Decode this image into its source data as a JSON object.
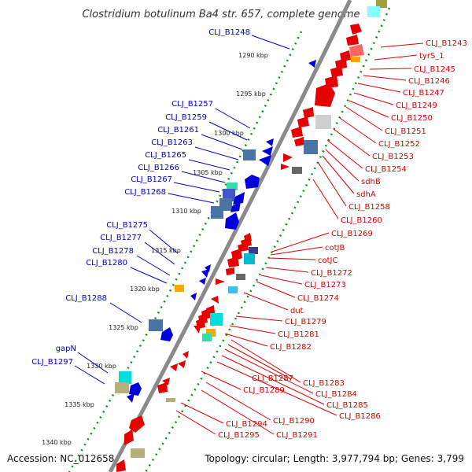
{
  "title": "Clostridium botulinum Ba4 str. 657, complete genome",
  "footer": {
    "accession": "Accession: NC_012658",
    "summary": "Topology: circular; Length: 3,977,794 bp; Genes: 3,799"
  },
  "colors": {
    "backbone": "#8a8a8a",
    "forward_strand": "#0000dd",
    "reverse_strand": "#e60000",
    "label_forward": "#0000cc",
    "label_reverse": "#dd0000",
    "tick": "#009900"
  },
  "kbp_ticks": [
    "1290 kbp",
    "1295 kbp",
    "1300 kbp",
    "1305 kbp",
    "1310 kbp",
    "1315 kbp",
    "1320 kbp",
    "1325 kbp",
    "1330 kbp",
    "1335 kbp",
    "1340 kbp"
  ],
  "forward_labels": [
    "CLJ_B1248",
    "CLJ_B1257",
    "CLJ_B1259",
    "CLJ_B1261",
    "CLJ_B1263",
    "CLJ_B1265",
    "CLJ_B1266",
    "CLJ_B1267",
    "CLJ_B1268",
    "CLJ_B1275",
    "CLJ_B1277",
    "CLJ_B1278",
    "CLJ_B1280",
    "CLJ_B1288",
    "gapN",
    "CLJ_B1297"
  ],
  "reverse_labels": [
    "CLJ_B1243",
    "tyrS_1",
    "CLJ_B1245",
    "CLJ_B1246",
    "CLJ_B1247",
    "CLJ_B1249",
    "CLJ_B1250",
    "CLJ_B1251",
    "CLJ_B1252",
    "CLJ_B1253",
    "CLJ_B1254",
    "sdhB",
    "sdhA",
    "CLJ_B1258",
    "CLJ_B1260",
    "CLJ_B1269",
    "cotJB",
    "cotJC",
    "CLJ_B1272",
    "CLJ_B1273",
    "CLJ_B1274",
    "dut",
    "CLJ_B1279",
    "CLJ_B1281",
    "CLJ_B1282",
    "CLJ_B1283",
    "CLJ_B1287",
    "CLJ_B1284",
    "CLJ_B1289",
    "CLJ_B1285",
    "CLJ_B1286",
    "CLJ_B1290",
    "CLJ_B1294",
    "CLJ_B1291",
    "CLJ_B1295"
  ]
}
